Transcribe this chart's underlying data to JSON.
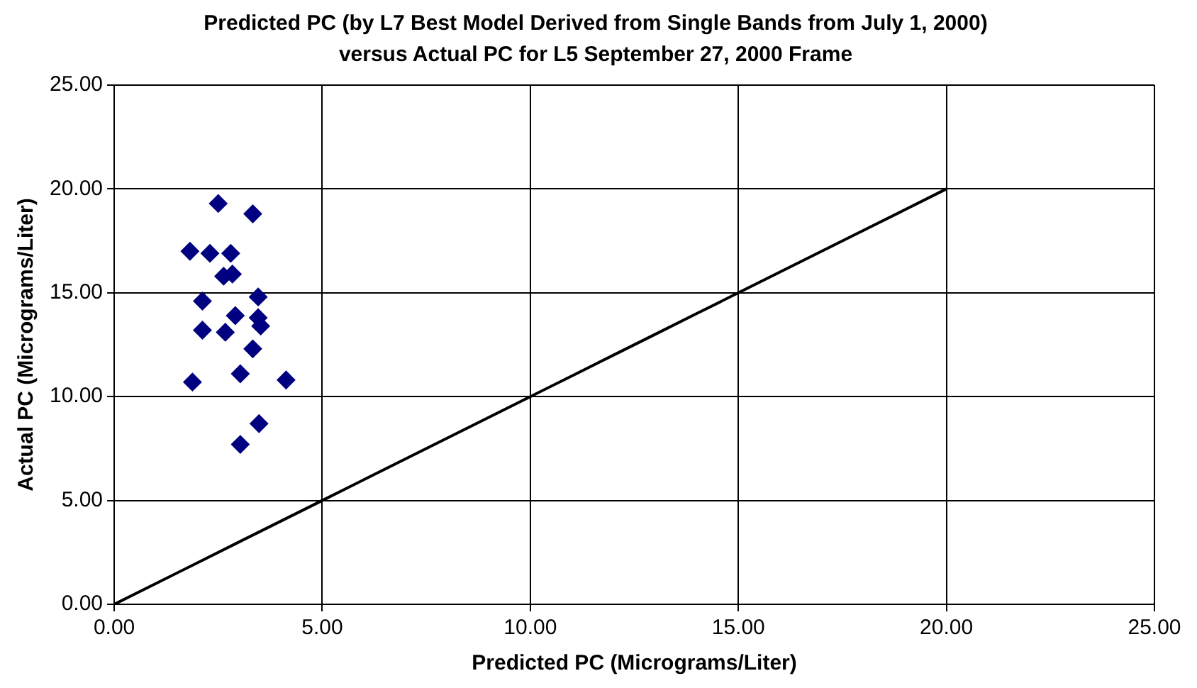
{
  "chart_data": {
    "type": "scatter",
    "title": "Predicted PC (by L7 Best Model Derived from Single Bands from July 1, 2000) versus Actual PC for L5 September 27, 2000 Frame",
    "xlabel": "Predicted PC (Micrograms/Liter)",
    "ylabel": "Actual PC (Micrograms/Liter)",
    "xlim": [
      0,
      25
    ],
    "ylim": [
      0,
      25
    ],
    "xticks": [
      {
        "value": 0,
        "label": "0.00"
      },
      {
        "value": 5,
        "label": "5.00"
      },
      {
        "value": 10,
        "label": "10.00"
      },
      {
        "value": 15,
        "label": "15.00"
      },
      {
        "value": 20,
        "label": "20.00"
      },
      {
        "value": 25,
        "label": "25.00"
      }
    ],
    "yticks": [
      {
        "value": 0,
        "label": "0.00"
      },
      {
        "value": 5,
        "label": "5.00"
      },
      {
        "value": 10,
        "label": "10.00"
      },
      {
        "value": 15,
        "label": "15.00"
      },
      {
        "value": 20,
        "label": "20.00"
      },
      {
        "value": 25,
        "label": "25.00"
      }
    ],
    "grid": true,
    "legend": false,
    "series": [
      {
        "type": "scatter",
        "color": "#000080",
        "marker": "diamond",
        "x": [
          2.5,
          3.33,
          1.82,
          2.3,
          2.8,
          2.63,
          2.84,
          2.12,
          3.46,
          2.91,
          3.46,
          3.52,
          2.12,
          2.67,
          3.33,
          1.88,
          3.03,
          4.13,
          3.48,
          3.03
        ],
        "values": [
          19.3,
          18.8,
          17.0,
          16.9,
          16.9,
          15.8,
          15.9,
          14.6,
          14.8,
          13.9,
          13.8,
          13.4,
          13.2,
          13.1,
          12.3,
          10.7,
          11.1,
          10.8,
          8.7,
          7.7
        ]
      },
      {
        "type": "line",
        "color": "#000000",
        "marker": "none",
        "line_style": "solid",
        "x": [
          0,
          1,
          2,
          3,
          4,
          5,
          6,
          7,
          8,
          9,
          10,
          11,
          12,
          13,
          14,
          15,
          16,
          17,
          18,
          19,
          20
        ],
        "values": [
          0,
          1,
          2,
          3,
          4,
          5,
          6,
          7,
          8,
          9,
          10,
          11,
          12,
          13,
          14,
          15,
          16,
          17,
          18,
          19,
          20
        ]
      }
    ]
  }
}
